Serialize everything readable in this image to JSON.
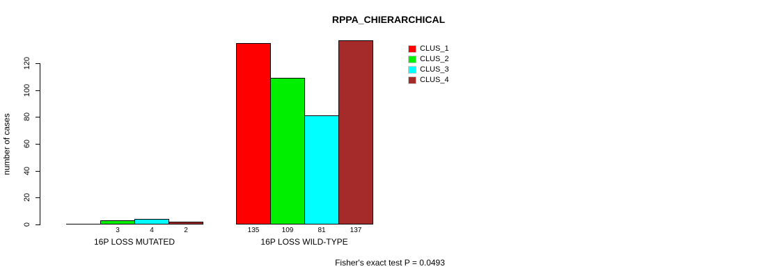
{
  "title": "RPPA_CHIERARCHICAL",
  "footer": {
    "stat_text": "Fisher's exact test P = 0.0493"
  },
  "chart_data": {
    "type": "bar",
    "title": "RPPA_CHIERARCHICAL",
    "categories": [
      "16P LOSS MUTATED",
      "16P LOSS WILD-TYPE"
    ],
    "series": [
      {
        "name": "CLUS_1",
        "color": "#ff0000",
        "values": [
          0,
          135
        ]
      },
      {
        "name": "CLUS_2",
        "color": "#00ee00",
        "values": [
          3,
          109
        ]
      },
      {
        "name": "CLUS_3",
        "color": "#00ffff",
        "values": [
          4,
          81
        ]
      },
      {
        "name": "CLUS_4",
        "color": "#a52a2a",
        "values": [
          2,
          137
        ]
      }
    ],
    "xlabel": "",
    "ylabel": "number of cases",
    "ylim": [
      0,
      140
    ],
    "yticks": [
      0,
      20,
      40,
      60,
      80,
      100,
      120
    ],
    "grid": false,
    "bar_outline_color": "#000000",
    "bar_value_labels_shown": true,
    "zero_value_labels_hidden": true,
    "legend_position": "top-right-inside",
    "annotation": "Fisher's exact test P = 0.0493"
  }
}
